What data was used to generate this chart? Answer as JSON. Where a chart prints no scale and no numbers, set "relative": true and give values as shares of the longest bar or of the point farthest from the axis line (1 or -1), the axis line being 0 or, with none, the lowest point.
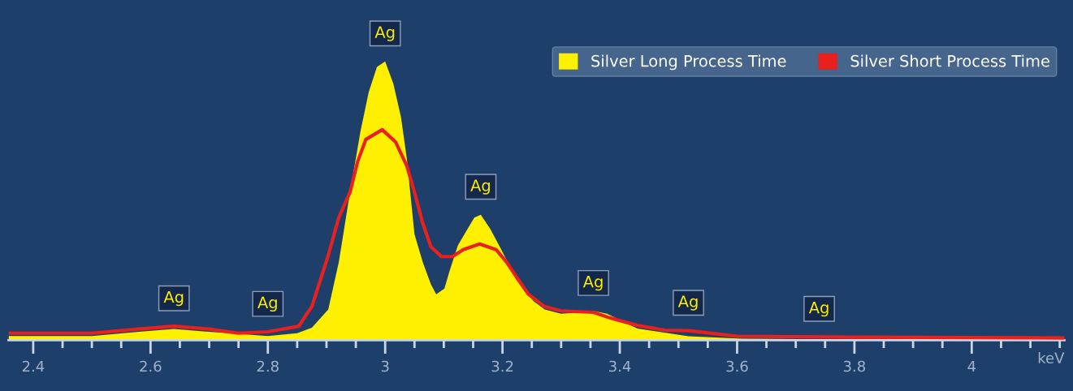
{
  "chart_data": {
    "type": "area",
    "relative": true,
    "xlabel": "keV",
    "xlim": [
      2.358,
      4.158
    ],
    "xticks": [
      2.4,
      {
        "value": 2.45,
        "label": null
      },
      {
        "value": 2.5,
        "label": null
      },
      {
        "value": 2.55,
        "label": null
      },
      2.6,
      {
        "value": 2.65,
        "label": null
      },
      {
        "value": 2.7,
        "label": null
      },
      {
        "value": 2.75,
        "label": null
      },
      2.8,
      {
        "value": 2.85,
        "label": null
      },
      {
        "value": 2.9,
        "label": null
      },
      {
        "value": 2.95,
        "label": null
      },
      3,
      {
        "value": 3.05,
        "label": null
      },
      {
        "value": 3.1,
        "label": null
      },
      {
        "value": 3.15,
        "label": null
      },
      3.2,
      {
        "value": 3.25,
        "label": null
      },
      {
        "value": 3.3,
        "label": null
      },
      {
        "value": 3.35,
        "label": null
      },
      3.4,
      {
        "value": 3.45,
        "label": null
      },
      {
        "value": 3.5,
        "label": null
      },
      {
        "value": 3.55,
        "label": null
      },
      3.6,
      {
        "value": 3.65,
        "label": null
      },
      {
        "value": 3.7,
        "label": null
      },
      {
        "value": 3.75,
        "label": null
      },
      3.8,
      {
        "value": 3.85,
        "label": null
      },
      {
        "value": 3.9,
        "label": null
      },
      {
        "value": 3.95,
        "label": null
      },
      4,
      {
        "value": 4.05,
        "label": null
      },
      {
        "value": 4.1,
        "label": null
      },
      {
        "value": 4.15,
        "label": null
      }
    ],
    "grid": false,
    "legend": "top right",
    "series": [
      {
        "name": "Silver Long Process Time",
        "color": "#ffef00",
        "x": [
          2.358,
          2.5,
          2.58,
          2.64,
          2.7,
          2.8,
          2.85,
          2.875,
          2.903,
          2.921,
          2.94,
          2.958,
          2.972,
          2.986,
          3.0,
          3.014,
          3.027,
          3.037,
          3.05,
          3.064,
          3.078,
          3.087,
          3.101,
          3.11,
          3.124,
          3.138,
          3.152,
          3.163,
          3.179,
          3.198,
          3.216,
          3.235,
          3.253,
          3.272,
          3.3,
          3.336,
          3.355,
          3.378,
          3.43,
          3.517,
          3.608,
          3.8,
          4.158
        ],
        "values": [
          0.015,
          0.015,
          0.03,
          0.04,
          0.03,
          0.015,
          0.025,
          0.045,
          0.11,
          0.28,
          0.53,
          0.75,
          0.89,
          0.98,
          1.0,
          0.92,
          0.8,
          0.65,
          0.38,
          0.28,
          0.2,
          0.165,
          0.185,
          0.25,
          0.34,
          0.39,
          0.44,
          0.45,
          0.4,
          0.325,
          0.25,
          0.185,
          0.14,
          0.11,
          0.095,
          0.1,
          0.105,
          0.095,
          0.042,
          0.014,
          0.005,
          0.003,
          0.003
        ]
      },
      {
        "name": "Silver Short Process Time",
        "type": "line",
        "color": "#e8201e",
        "x": [
          2.358,
          2.5,
          2.58,
          2.64,
          2.7,
          2.75,
          2.8,
          2.853,
          2.865,
          2.875,
          2.903,
          2.921,
          2.94,
          2.953,
          2.967,
          2.995,
          3.018,
          3.037,
          3.05,
          3.064,
          3.078,
          3.096,
          3.115,
          3.133,
          3.161,
          3.189,
          3.207,
          3.226,
          3.244,
          3.272,
          3.3,
          3.355,
          3.383,
          3.43,
          3.476,
          3.517,
          3.6,
          3.8,
          4.158
        ],
        "values": [
          0.025,
          0.025,
          0.04,
          0.05,
          0.04,
          0.025,
          0.03,
          0.05,
          0.09,
          0.12,
          0.305,
          0.44,
          0.53,
          0.64,
          0.72,
          0.755,
          0.71,
          0.625,
          0.53,
          0.42,
          0.335,
          0.3,
          0.3,
          0.325,
          0.345,
          0.325,
          0.28,
          0.22,
          0.165,
          0.12,
          0.105,
          0.1,
          0.08,
          0.053,
          0.036,
          0.034,
          0.014,
          0.011,
          0.008
        ]
      }
    ],
    "annotations": [
      {
        "text": "Ag",
        "x": 2.64,
        "y": 0.05
      },
      {
        "text": "Ag",
        "x": 2.8,
        "y": 0.03
      },
      {
        "text": "Ag",
        "x": 3.0,
        "y": 1.0
      },
      {
        "text": "Ag",
        "x": 3.163,
        "y": 0.45
      },
      {
        "text": "Ag",
        "x": 3.355,
        "y": 0.105
      },
      {
        "text": "Ag",
        "x": 3.517,
        "y": 0.034
      },
      {
        "text": "Ag",
        "x": 3.74,
        "y": 0.012
      }
    ]
  }
}
